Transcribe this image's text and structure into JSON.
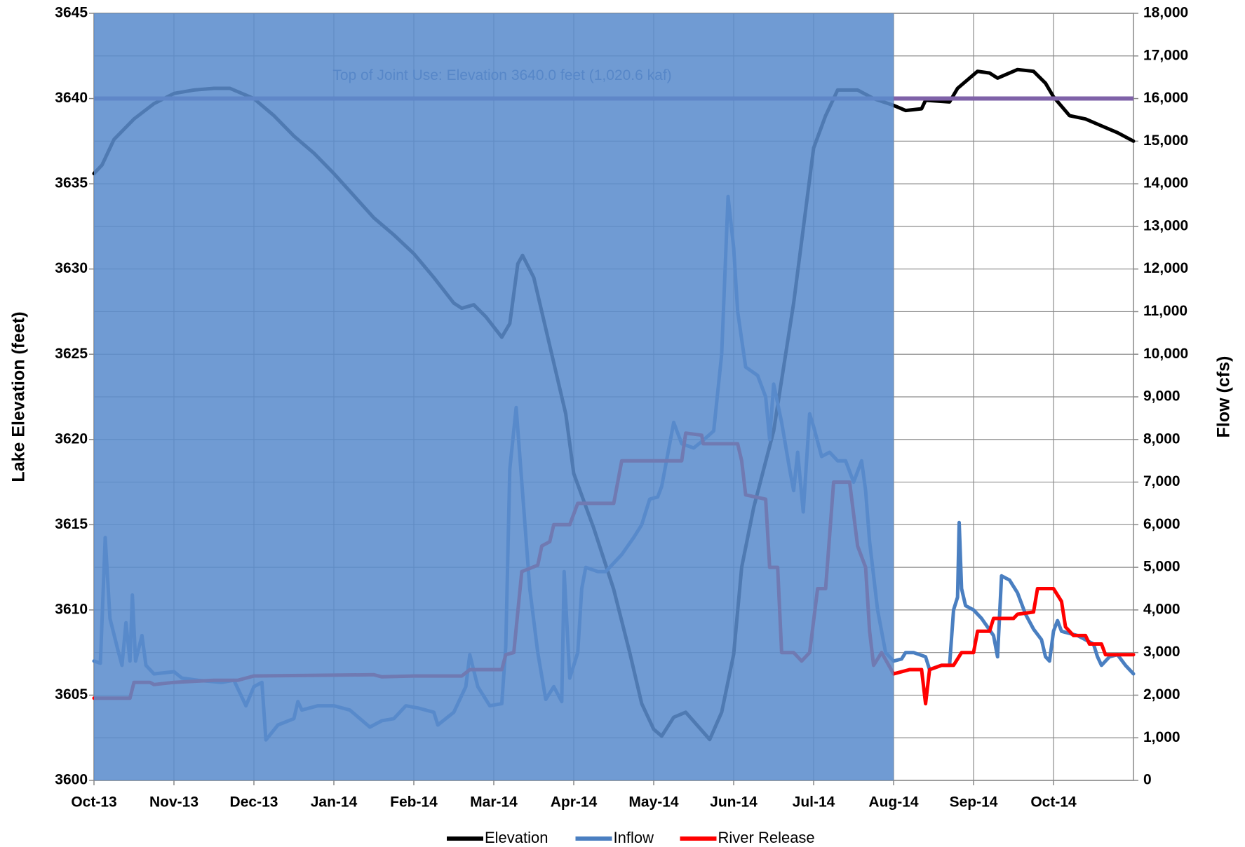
{
  "chart_data": {
    "type": "line",
    "ylabel": "Lake Elevation (feet)",
    "y2label": "Flow (cfs)",
    "xlim": [
      0,
      13
    ],
    "xticks": [
      {
        "value": 0,
        "label": "Oct-13"
      },
      {
        "value": 1,
        "label": "Nov-13"
      },
      {
        "value": 2,
        "label": "Dec-13"
      },
      {
        "value": 3,
        "label": "Jan-14"
      },
      {
        "value": 4,
        "label": "Feb-14"
      },
      {
        "value": 5,
        "label": "Mar-14"
      },
      {
        "value": 6,
        "label": "Apr-14"
      },
      {
        "value": 7,
        "label": "May-14"
      },
      {
        "value": 8,
        "label": "Jun-14"
      },
      {
        "value": 9,
        "label": "Jul-14"
      },
      {
        "value": 10,
        "label": "Aug-14"
      },
      {
        "value": 11,
        "label": "Sep-14"
      },
      {
        "value": 12,
        "label": "Oct-14"
      }
    ],
    "ylim": [
      3600,
      3645
    ],
    "yticks": [
      3600,
      3605,
      3610,
      3615,
      3620,
      3625,
      3630,
      3635,
      3640,
      3645
    ],
    "y2lim": [
      0,
      18000
    ],
    "y2ticks": [
      0,
      {
        "value": 1000,
        "label": "1,000"
      },
      {
        "value": 2000,
        "label": "2,000"
      },
      {
        "value": 3000,
        "label": "3,000"
      },
      {
        "value": 4000,
        "label": "4,000"
      },
      {
        "value": 5000,
        "label": "5,000"
      },
      {
        "value": 6000,
        "label": "6,000"
      },
      {
        "value": 7000,
        "label": "7,000"
      },
      {
        "value": 8000,
        "label": "8,000"
      },
      {
        "value": 9000,
        "label": "9,000"
      },
      {
        "value": 10000,
        "label": "10,000"
      },
      {
        "value": 11000,
        "label": "11,000"
      },
      {
        "value": 12000,
        "label": "12,000"
      },
      {
        "value": 13000,
        "label": "13,000"
      },
      {
        "value": 14000,
        "label": "14,000"
      },
      {
        "value": 15000,
        "label": "15,000"
      },
      {
        "value": 16000,
        "label": "16,000"
      },
      {
        "value": 17000,
        "label": "17,000"
      },
      {
        "value": 18000,
        "label": "18,000"
      }
    ],
    "grid": true,
    "legend": "bottom",
    "reference_line": {
      "value": 3640,
      "color": "#7f62a8",
      "label": "Top of Joint Use: Elevation 3640.0 feet (1,020.6 kaf)"
    },
    "shade": {
      "x": [
        0,
        10
      ],
      "color": "#5b8ccc"
    },
    "series": [
      {
        "name": "Elevation",
        "color": "#000000",
        "axis": "y",
        "x": [
          0,
          0.1,
          0.25,
          0.5,
          0.75,
          1,
          1.25,
          1.5,
          1.7,
          2,
          2.25,
          2.5,
          2.75,
          3,
          3.25,
          3.5,
          3.75,
          4,
          4.25,
          4.5,
          4.6,
          4.75,
          4.9,
          5.1,
          5.2,
          5.3,
          5.36,
          5.5,
          5.7,
          5.9,
          6,
          6.25,
          6.5,
          6.7,
          6.85,
          7,
          7.1,
          7.25,
          7.4,
          7.55,
          7.7,
          7.85,
          8,
          8.1,
          8.25,
          8.5,
          8.75,
          9,
          9.15,
          9.3,
          9.55,
          9.75,
          10,
          10.15,
          10.35,
          10.4,
          10.7,
          10.8,
          11.05,
          11.2,
          11.3,
          11.55,
          11.75,
          11.9,
          12,
          12.2,
          12.4,
          12.6,
          12.8,
          13
        ],
        "values": [
          3635.6,
          3636.1,
          3637.6,
          3638.8,
          3639.7,
          3640.3,
          3640.5,
          3640.6,
          3640.6,
          3640.0,
          3639.0,
          3637.8,
          3636.8,
          3635.6,
          3634.3,
          3633.0,
          3632.0,
          3630.9,
          3629.5,
          3628.0,
          3627.7,
          3627.9,
          3627.2,
          3626.0,
          3626.8,
          3630.3,
          3630.8,
          3629.5,
          3625.5,
          3621.5,
          3618.0,
          3614.8,
          3611.2,
          3607.5,
          3604.5,
          3603.0,
          3602.6,
          3603.7,
          3604.0,
          3603.2,
          3602.4,
          3604.0,
          3607.4,
          3612.5,
          3616.0,
          3620.5,
          3628.0,
          3637.1,
          3639.0,
          3640.5,
          3640.5,
          3640.0,
          3639.6,
          3639.3,
          3639.4,
          3639.9,
          3639.8,
          3640.6,
          3641.6,
          3641.5,
          3641.2,
          3641.7,
          3641.6,
          3640.9,
          3640.1,
          3639.0,
          3638.8,
          3638.4,
          3638.0,
          3637.5
        ]
      },
      {
        "name": "Inflow",
        "color": "#4a7fc1",
        "axis": "y2",
        "x": [
          0,
          0.08,
          0.12,
          0.14,
          0.2,
          0.3,
          0.35,
          0.4,
          0.45,
          0.48,
          0.52,
          0.6,
          0.65,
          0.75,
          1,
          1.1,
          1.3,
          1.6,
          1.75,
          1.9,
          2,
          2.1,
          2.15,
          2.3,
          2.5,
          2.55,
          2.6,
          2.8,
          3,
          3.2,
          3.45,
          3.6,
          3.75,
          3.9,
          4.05,
          4.25,
          4.3,
          4.5,
          4.65,
          4.7,
          4.8,
          4.95,
          5.1,
          5.15,
          5.2,
          5.28,
          5.35,
          5.45,
          5.55,
          5.65,
          5.75,
          5.85,
          5.88,
          5.95,
          6.05,
          6.1,
          6.15,
          6.3,
          6.4,
          6.5,
          6.6,
          6.75,
          6.85,
          6.95,
          7.05,
          7.1,
          7.25,
          7.35,
          7.5,
          7.6,
          7.75,
          7.85,
          7.93,
          8,
          8.05,
          8.15,
          8.3,
          8.4,
          8.45,
          8.5,
          8.6,
          8.7,
          8.75,
          8.8,
          8.87,
          8.95,
          9,
          9.1,
          9.2,
          9.3,
          9.4,
          9.5,
          9.6,
          9.65,
          9.7,
          9.8,
          9.9,
          10,
          10.1,
          10.15,
          10.25,
          10.4,
          10.45,
          10.6,
          10.7,
          10.75,
          10.8,
          10.82,
          10.85,
          10.9,
          11,
          11.1,
          11.25,
          11.3,
          11.35,
          11.45,
          11.55,
          11.65,
          11.75,
          11.85,
          11.9,
          11.95,
          12,
          12.05,
          12.1,
          12.3,
          12.4,
          12.5,
          12.55,
          12.6,
          12.7,
          12.8,
          12.9,
          12.95,
          13
        ],
        "values": [
          2800,
          2750,
          4700,
          5700,
          3800,
          3050,
          2700,
          3700,
          2800,
          4350,
          2800,
          3400,
          2700,
          2500,
          2550,
          2400,
          2350,
          2300,
          2350,
          1750,
          2200,
          2300,
          950,
          1300,
          1450,
          1850,
          1650,
          1750,
          1750,
          1650,
          1250,
          1400,
          1450,
          1750,
          1700,
          1600,
          1300,
          1600,
          2200,
          2950,
          2200,
          1750,
          1800,
          3150,
          7300,
          8750,
          7000,
          4500,
          3000,
          1900,
          2200,
          1850,
          4900,
          2400,
          3000,
          4500,
          5000,
          4900,
          4900,
          5100,
          5300,
          5700,
          6000,
          6600,
          6650,
          6900,
          8400,
          7900,
          7800,
          7950,
          8200,
          10000,
          13700,
          12500,
          11000,
          9700,
          9500,
          9000,
          8000,
          9300,
          8400,
          7300,
          6800,
          7700,
          6300,
          8600,
          8300,
          7600,
          7700,
          7500,
          7500,
          7000,
          7500,
          6800,
          5600,
          4000,
          3000,
          2800,
          2850,
          3000,
          3000,
          2900,
          2600,
          2700,
          2700,
          4000,
          4300,
          6050,
          4500,
          4100,
          4000,
          3800,
          3400,
          2900,
          4800,
          4700,
          4400,
          3900,
          3550,
          3300,
          2900,
          2800,
          3500,
          3750,
          3500,
          3400,
          3300,
          3200,
          2900,
          2700,
          2900,
          2950,
          2700,
          2600,
          2500
        ]
      },
      {
        "name": "River Release",
        "color": "#ff0000",
        "axis": "y2",
        "x": [
          0,
          0.45,
          0.5,
          0.7,
          0.75,
          1,
          1.5,
          1.8,
          1.9,
          2,
          3,
          3.5,
          3.6,
          4,
          4.6,
          4.7,
          5.1,
          5.15,
          5.25,
          5.35,
          5.55,
          5.6,
          5.7,
          5.75,
          5.95,
          6.05,
          6.5,
          6.6,
          7.35,
          7.4,
          7.6,
          7.62,
          8.05,
          8.1,
          8.15,
          8.4,
          8.45,
          8.55,
          8.6,
          8.75,
          8.85,
          8.95,
          9.05,
          9.15,
          9.25,
          9.45,
          9.55,
          9.65,
          9.7,
          9.75,
          9.85,
          10,
          10.2,
          10.35,
          10.4,
          10.45,
          10.6,
          10.75,
          10.85,
          11,
          11.05,
          11.2,
          11.25,
          11.5,
          11.55,
          11.75,
          11.8,
          12,
          12.1,
          12.15,
          12.25,
          12.4,
          12.45,
          12.6,
          12.65,
          13
        ],
        "values": [
          1930,
          1930,
          2300,
          2300,
          2250,
          2300,
          2350,
          2350,
          2400,
          2450,
          2470,
          2480,
          2430,
          2450,
          2450,
          2600,
          2600,
          2950,
          3000,
          4900,
          5050,
          5500,
          5600,
          6000,
          6000,
          6500,
          6500,
          7500,
          7500,
          8150,
          8100,
          7900,
          7900,
          7500,
          6700,
          6600,
          5000,
          5000,
          3000,
          3000,
          2800,
          3000,
          4500,
          4500,
          7000,
          7000,
          5500,
          5000,
          3500,
          2700,
          3000,
          2500,
          2600,
          2600,
          1800,
          2600,
          2700,
          2700,
          3000,
          3000,
          3500,
          3500,
          3800,
          3800,
          3900,
          3950,
          4500,
          4500,
          4200,
          3600,
          3400,
          3400,
          3200,
          3200,
          2950,
          2950
        ]
      }
    ]
  }
}
